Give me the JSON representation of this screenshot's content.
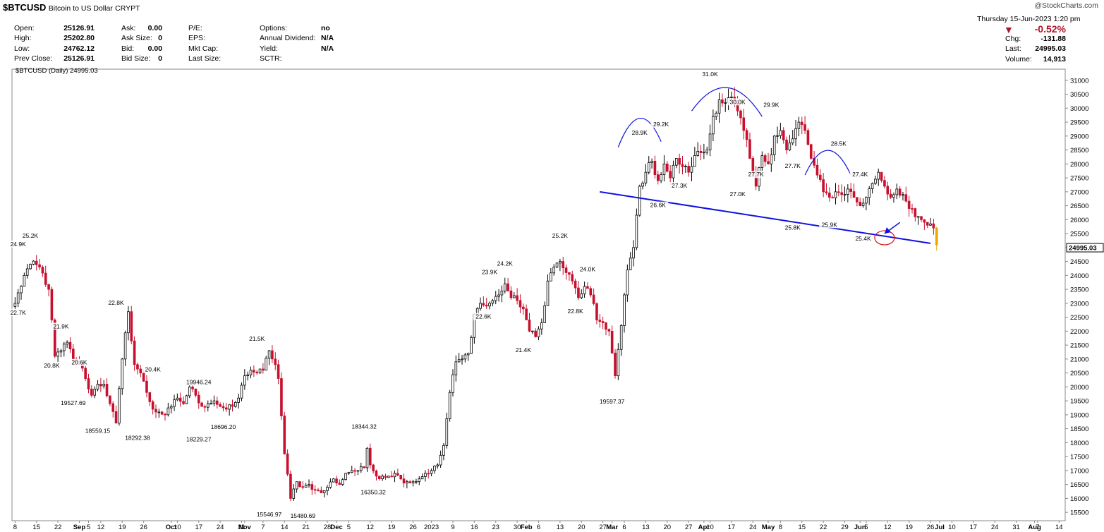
{
  "header": {
    "symbol": "$BTCUSD",
    "name": "Bitcoin to US Dollar",
    "exchange": "CRYPT",
    "credit": "@StockCharts.com",
    "date": "Thursday  15-Jun-2023  1:20 pm",
    "change_pct": "-0.52%",
    "fields_col1": [
      {
        "label": "Open:",
        "value": "25126.91"
      },
      {
        "label": "High:",
        "value": "25202.80"
      },
      {
        "label": "Low:",
        "value": "24762.12"
      },
      {
        "label": "Prev Close:",
        "value": "25126.91"
      }
    ],
    "fields_col2": [
      {
        "label": "Ask:",
        "value": "0.00"
      },
      {
        "label": "Ask Size:",
        "value": "0"
      },
      {
        "label": "Bid:",
        "value": "0.00"
      },
      {
        "label": "Bid Size:",
        "value": "0"
      }
    ],
    "fields_col3": [
      {
        "label": "P/E:",
        "value": ""
      },
      {
        "label": "EPS:",
        "value": ""
      },
      {
        "label": "Mkt Cap:",
        "value": ""
      },
      {
        "label": "Last Size:",
        "value": ""
      }
    ],
    "fields_col4": [
      {
        "label": "Options:",
        "value": "no"
      },
      {
        "label": "Annual Dividend:",
        "value": "N/A"
      },
      {
        "label": "Yield:",
        "value": "N/A"
      },
      {
        "label": "SCTR:",
        "value": ""
      }
    ],
    "fields_right": [
      {
        "label": "Chg:",
        "value": "-131.88"
      },
      {
        "label": "Last:",
        "value": "24995.03"
      },
      {
        "label": "Volume:",
        "value": "14,913"
      }
    ],
    "legend": "$BTCUSD (Daily) 24995.03"
  },
  "colors": {
    "up": "#000000",
    "down": "#c8102e",
    "trend": "#1010e0",
    "circle": "#e02020",
    "last_candle": "#f0a500"
  },
  "chart_data": {
    "type": "candlestick",
    "title": "$BTCUSD (Daily) 24995.03",
    "ylim": [
      15200,
      31400
    ],
    "y_ticks": [
      15500,
      16000,
      16500,
      17000,
      17500,
      18000,
      18500,
      19000,
      19500,
      20000,
      20500,
      21000,
      21500,
      22000,
      22500,
      23000,
      23500,
      24000,
      24500,
      25000,
      25500,
      26000,
      26500,
      27000,
      27500,
      28000,
      28500,
      29000,
      29500,
      30000,
      30500,
      31000
    ],
    "last_price_label": "24995.03",
    "x_ticks": [
      "8",
      "15",
      "22",
      "Sep",
      "5",
      "12",
      "19",
      "26",
      "Oct",
      "10",
      "17",
      "24",
      "31",
      "Nov",
      "7",
      "14",
      "21",
      "28",
      "Dec",
      "5",
      "12",
      "19",
      "26",
      "2023",
      "9",
      "16",
      "23",
      "30",
      "Feb",
      "6",
      "13",
      "20",
      "27",
      "Mar",
      "6",
      "13",
      "20",
      "27",
      "Apr",
      "10",
      "17",
      "24",
      "May",
      "8",
      "15",
      "22",
      "29",
      "Jun",
      "5",
      "12",
      "19",
      "26",
      "Jul",
      "10",
      "17",
      "24",
      "31",
      "Aug",
      "7",
      "14"
    ],
    "x_tick_days": [
      0,
      7,
      14,
      21,
      24,
      28,
      35,
      42,
      51,
      53,
      60,
      67,
      74,
      75,
      81,
      88,
      95,
      102,
      105,
      109,
      116,
      123,
      130,
      136,
      143,
      150,
      157,
      164,
      167,
      171,
      178,
      185,
      192,
      195,
      199,
      206,
      213,
      220,
      225,
      227,
      234,
      241,
      246,
      250,
      257,
      264,
      271,
      276,
      278,
      285,
      292,
      299,
      302,
      306,
      313,
      320,
      327,
      333,
      334,
      341
    ],
    "x_day_range": [
      -1,
      343
    ],
    "close_anchors": [
      [
        0,
        23000
      ],
      [
        3,
        24000
      ],
      [
        5,
        24400
      ],
      [
        8,
        24300
      ],
      [
        11,
        23500
      ],
      [
        13,
        21100
      ],
      [
        15,
        21300
      ],
      [
        17,
        21600
      ],
      [
        19,
        21000
      ],
      [
        21,
        20900
      ],
      [
        23,
        20300
      ],
      [
        25,
        19700
      ],
      [
        27,
        20100
      ],
      [
        29,
        20100
      ],
      [
        31,
        19400
      ],
      [
        33,
        18700
      ],
      [
        35,
        21000
      ],
      [
        37,
        22700
      ],
      [
        39,
        20800
      ],
      [
        41,
        20500
      ],
      [
        43,
        19800
      ],
      [
        45,
        19200
      ],
      [
        47,
        19100
      ],
      [
        49,
        19000
      ],
      [
        51,
        19300
      ],
      [
        53,
        19600
      ],
      [
        55,
        19400
      ],
      [
        57,
        20000
      ],
      [
        59,
        19700
      ],
      [
        61,
        19300
      ],
      [
        63,
        19400
      ],
      [
        65,
        19500
      ],
      [
        67,
        19300
      ],
      [
        69,
        19200
      ],
      [
        71,
        19300
      ],
      [
        73,
        19600
      ],
      [
        75,
        20400
      ],
      [
        77,
        20600
      ],
      [
        79,
        20500
      ],
      [
        81,
        20600
      ],
      [
        83,
        21300
      ],
      [
        85,
        20800
      ],
      [
        86,
        20300
      ],
      [
        88,
        17600
      ],
      [
        90,
        16000
      ],
      [
        92,
        16600
      ],
      [
        94,
        16400
      ],
      [
        96,
        16500
      ],
      [
        98,
        16300
      ],
      [
        100,
        16200
      ],
      [
        102,
        16400
      ],
      [
        104,
        16700
      ],
      [
        106,
        16500
      ],
      [
        108,
        16900
      ],
      [
        110,
        17000
      ],
      [
        112,
        17000
      ],
      [
        114,
        17100
      ],
      [
        115,
        17800
      ],
      [
        116,
        17200
      ],
      [
        118,
        16800
      ],
      [
        120,
        16800
      ],
      [
        122,
        16800
      ],
      [
        124,
        16900
      ],
      [
        126,
        16700
      ],
      [
        128,
        16600
      ],
      [
        130,
        16600
      ],
      [
        132,
        16700
      ],
      [
        134,
        16900
      ],
      [
        136,
        17000
      ],
      [
        138,
        17200
      ],
      [
        140,
        17900
      ],
      [
        142,
        19800
      ],
      [
        144,
        20900
      ],
      [
        146,
        21000
      ],
      [
        148,
        21200
      ],
      [
        150,
        22600
      ],
      [
        152,
        23000
      ],
      [
        154,
        22900
      ],
      [
        156,
        23100
      ],
      [
        158,
        23300
      ],
      [
        160,
        23700
      ],
      [
        162,
        23200
      ],
      [
        164,
        23100
      ],
      [
        166,
        22800
      ],
      [
        168,
        22000
      ],
      [
        170,
        21800
      ],
      [
        172,
        22300
      ],
      [
        174,
        23800
      ],
      [
        176,
        24300
      ],
      [
        178,
        24500
      ],
      [
        180,
        24100
      ],
      [
        182,
        23800
      ],
      [
        184,
        23200
      ],
      [
        186,
        23600
      ],
      [
        188,
        23300
      ],
      [
        190,
        22400
      ],
      [
        192,
        22300
      ],
      [
        194,
        22000
      ],
      [
        196,
        20400
      ],
      [
        198,
        22200
      ],
      [
        200,
        24200
      ],
      [
        202,
        25000
      ],
      [
        204,
        27200
      ],
      [
        206,
        27700
      ],
      [
        208,
        28100
      ],
      [
        210,
        27400
      ],
      [
        212,
        28000
      ],
      [
        214,
        27500
      ],
      [
        216,
        28200
      ],
      [
        218,
        27900
      ],
      [
        220,
        27700
      ],
      [
        222,
        28300
      ],
      [
        224,
        28400
      ],
      [
        226,
        28500
      ],
      [
        228,
        29700
      ],
      [
        230,
        30300
      ],
      [
        232,
        30200
      ],
      [
        234,
        30400
      ],
      [
        236,
        29900
      ],
      [
        238,
        29200
      ],
      [
        240,
        28200
      ],
      [
        242,
        27200
      ],
      [
        244,
        28300
      ],
      [
        246,
        28000
      ],
      [
        248,
        29000
      ],
      [
        250,
        29200
      ],
      [
        252,
        28500
      ],
      [
        254,
        28900
      ],
      [
        256,
        29500
      ],
      [
        258,
        29200
      ],
      [
        260,
        28200
      ],
      [
        262,
        27600
      ],
      [
        264,
        27000
      ],
      [
        266,
        26800
      ],
      [
        268,
        27000
      ],
      [
        270,
        26900
      ],
      [
        272,
        27100
      ],
      [
        274,
        26800
      ],
      [
        276,
        26500
      ],
      [
        278,
        26800
      ],
      [
        280,
        27300
      ],
      [
        282,
        27700
      ],
      [
        284,
        27200
      ],
      [
        286,
        26800
      ],
      [
        288,
        27100
      ],
      [
        290,
        26900
      ],
      [
        292,
        26400
      ],
      [
        294,
        26100
      ],
      [
        296,
        26000
      ],
      [
        298,
        25800
      ],
      [
        300,
        25700
      ],
      [
        301,
        25100
      ]
    ],
    "price_labels": [
      {
        "text": "24.9K",
        "day": 1,
        "price": 24950,
        "pos": "above"
      },
      {
        "text": "25.2K",
        "day": 5,
        "price": 25250,
        "pos": "above"
      },
      {
        "text": "22.7K",
        "day": 1,
        "price": 22850,
        "pos": "below"
      },
      {
        "text": "20.8K",
        "day": 12,
        "price": 20950,
        "pos": "below"
      },
      {
        "text": "21.9K",
        "day": 15,
        "price": 22000,
        "pos": "above"
      },
      {
        "text": "20.6K",
        "day": 21,
        "price": 20700,
        "pos": "above"
      },
      {
        "text": "19527.69",
        "day": 19,
        "price": 19600,
        "pos": "below"
      },
      {
        "text": "18559.15",
        "day": 27,
        "price": 18600,
        "pos": "below"
      },
      {
        "text": "22.8K",
        "day": 33,
        "price": 22850,
        "pos": "above"
      },
      {
        "text": "18292.38",
        "day": 40,
        "price": 18350,
        "pos": "below"
      },
      {
        "text": "20.4K",
        "day": 45,
        "price": 20450,
        "pos": "above"
      },
      {
        "text": "19946.24",
        "day": 60,
        "price": 20000,
        "pos": "above"
      },
      {
        "text": "18229.27",
        "day": 60,
        "price": 18300,
        "pos": "below"
      },
      {
        "text": "18696.20",
        "day": 68,
        "price": 18750,
        "pos": "below"
      },
      {
        "text": "21.5K",
        "day": 79,
        "price": 21550,
        "pos": "above"
      },
      {
        "text": "15546.97",
        "day": 83,
        "price": 15600,
        "pos": "below"
      },
      {
        "text": "15480.69",
        "day": 94,
        "price": 15550,
        "pos": "below"
      },
      {
        "text": "18344.32",
        "day": 114,
        "price": 18400,
        "pos": "above"
      },
      {
        "text": "16350.32",
        "day": 117,
        "price": 16400,
        "pos": "below"
      },
      {
        "text": "23.9K",
        "day": 155,
        "price": 23950,
        "pos": "above"
      },
      {
        "text": "24.2K",
        "day": 160,
        "price": 24250,
        "pos": "above"
      },
      {
        "text": "22.6K",
        "day": 153,
        "price": 22700,
        "pos": "below"
      },
      {
        "text": "21.4K",
        "day": 166,
        "price": 21500,
        "pos": "below"
      },
      {
        "text": "25.2K",
        "day": 178,
        "price": 25250,
        "pos": "above"
      },
      {
        "text": "24.0K",
        "day": 187,
        "price": 24050,
        "pos": "above"
      },
      {
        "text": "22.8K",
        "day": 183,
        "price": 22900,
        "pos": "below"
      },
      {
        "text": "19597.37",
        "day": 195,
        "price": 19650,
        "pos": "below"
      },
      {
        "text": "28.9K",
        "day": 204,
        "price": 28950,
        "pos": "above"
      },
      {
        "text": "29.2K",
        "day": 211,
        "price": 29250,
        "pos": "above"
      },
      {
        "text": "26.6K",
        "day": 210,
        "price": 26700,
        "pos": "below"
      },
      {
        "text": "27.3K",
        "day": 217,
        "price": 27400,
        "pos": "below"
      },
      {
        "text": "31.0K",
        "day": 227,
        "price": 31050,
        "pos": "above"
      },
      {
        "text": "30.0K",
        "day": 236,
        "price": 30050,
        "pos": "above"
      },
      {
        "text": "27.0K",
        "day": 236,
        "price": 27100,
        "pos": "below"
      },
      {
        "text": "27.7K",
        "day": 242,
        "price": 27800,
        "pos": "below"
      },
      {
        "text": "29.9K",
        "day": 247,
        "price": 29950,
        "pos": "above"
      },
      {
        "text": "27.7K",
        "day": 254,
        "price": 27750,
        "pos": "above"
      },
      {
        "text": "25.8K",
        "day": 254,
        "price": 25900,
        "pos": "below"
      },
      {
        "text": "25.9K",
        "day": 266,
        "price": 26000,
        "pos": "below"
      },
      {
        "text": "28.5K",
        "day": 269,
        "price": 28550,
        "pos": "above"
      },
      {
        "text": "27.4K",
        "day": 276,
        "price": 27450,
        "pos": "above"
      },
      {
        "text": "25.4K",
        "day": 277,
        "price": 25500,
        "pos": "below"
      }
    ],
    "annotations": {
      "neckline": [
        [
          191,
          27000
        ],
        [
          299,
          25150
        ]
      ],
      "arcs": [
        [
          197,
          28600,
          211,
          28800
        ],
        [
          221,
          29900,
          244,
          29700
        ],
        [
          258,
          27600,
          273,
          27600
        ]
      ],
      "circle": {
        "day": 284,
        "price": 25350
      },
      "arrow_from": {
        "day": 289,
        "price": 25900
      },
      "arrow_to": {
        "day": 284,
        "price": 25500
      }
    }
  }
}
